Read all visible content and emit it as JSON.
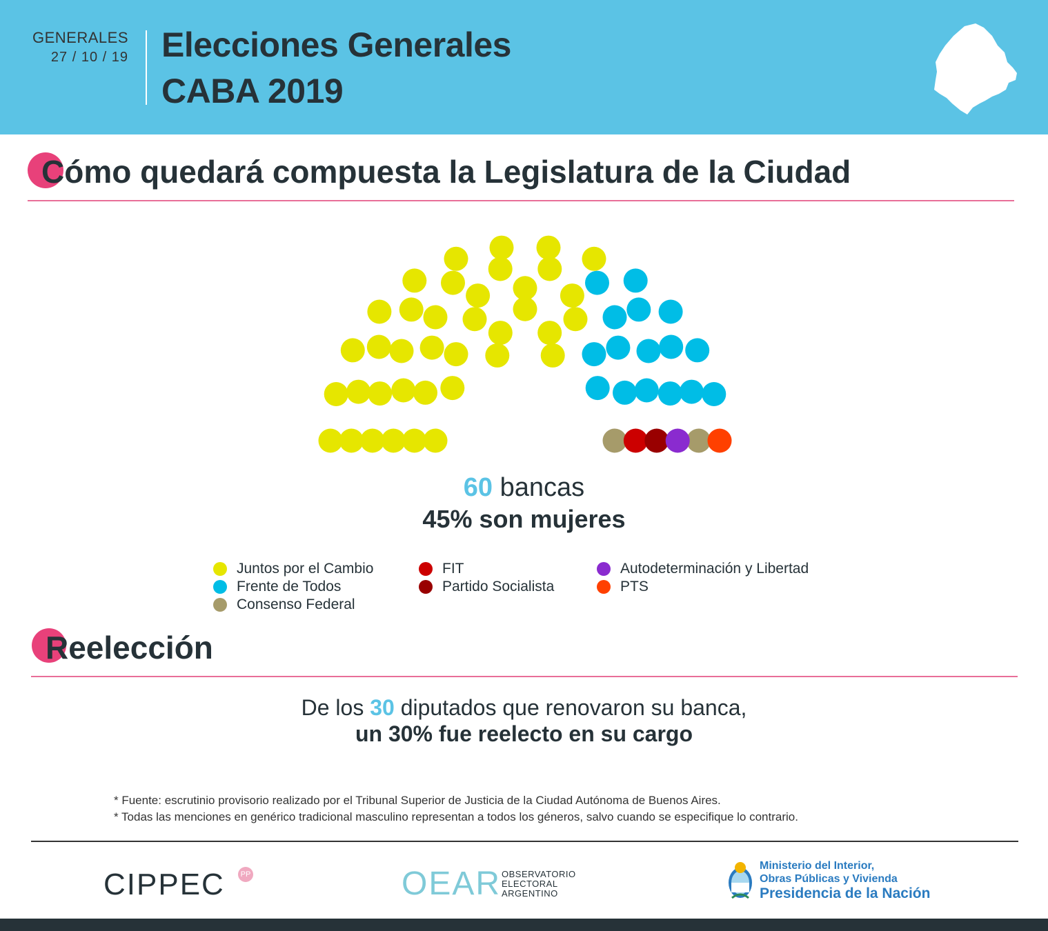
{
  "header": {
    "label": "GENERALES",
    "date": "27 / 10 / 19",
    "title_line1": "Elecciones Generales",
    "title_line2": "CABA 2019"
  },
  "section1": {
    "title": "Cómo quedará compuesta la Legislatura de la Ciudad"
  },
  "summary": {
    "seats_number": "60",
    "seats_label": "bancas",
    "women": "45% son mujeres"
  },
  "chart_data": {
    "type": "parliament",
    "title": "Cómo quedará compuesta la Legislatura de la Ciudad",
    "total_seats": 60,
    "series": [
      {
        "name": "Juntos por el Cambio",
        "seats": 38,
        "color": "#e6e600"
      },
      {
        "name": "Frente de Todos",
        "seats": 16,
        "color": "#00bde6"
      },
      {
        "name": "Consenso Federal",
        "seats": 2,
        "color": "#a69b6a"
      },
      {
        "name": "FIT",
        "seats": 1,
        "color": "#cc0000"
      },
      {
        "name": "Partido Socialista",
        "seats": 1,
        "color": "#990000"
      },
      {
        "name": "Autodeterminación y Libertad",
        "seats": 1,
        "color": "#8a2bcf"
      },
      {
        "name": "PTS",
        "seats": 1,
        "color": "#ff4000"
      }
    ]
  },
  "legend": [
    {
      "label": "Juntos por el Cambio",
      "color": "#e6e600"
    },
    {
      "label": "Frente de Todos",
      "color": "#00bde6"
    },
    {
      "label": "Consenso Federal",
      "color": "#a69b6a"
    },
    {
      "label": "FIT",
      "color": "#cc0000"
    },
    {
      "label": "Partido Socialista",
      "color": "#990000"
    },
    {
      "label": "Autodeterminación y Libertad",
      "color": "#8a2bcf"
    },
    {
      "label": "PTS",
      "color": "#ff4000"
    }
  ],
  "section2": {
    "title": "Reelección"
  },
  "reelection": {
    "prefix": "De los",
    "number": "30",
    "suffix": "diputados que renovaron su banca,",
    "line2": "un 30% fue reelecto en su cargo"
  },
  "notes": [
    "* Fuente: escrutinio provisorio realizado por el Tribunal Superior de Justicia de la Ciudad Autónoma de Buenos Aires.",
    "* Todas las menciones en genérico tradicional masculino representan a todos los géneros, salvo cuando se especifique lo contrario."
  ],
  "footer": {
    "cippec": "CIPPEC",
    "cippec_badge": "PP",
    "oear": "OEAR",
    "oear_sub": [
      "OBSERVATORIO",
      "ELECTORAL",
      "ARGENTINO"
    ],
    "ministry_line1": "Ministerio del Interior,",
    "ministry_line2": "Obras Públicas y Vivienda",
    "ministry_line3": "Presidencia de la Nación"
  },
  "colors": {
    "header_bg": "#5bc3e5",
    "accent_pink": "#e8417a",
    "dark": "#263238"
  }
}
